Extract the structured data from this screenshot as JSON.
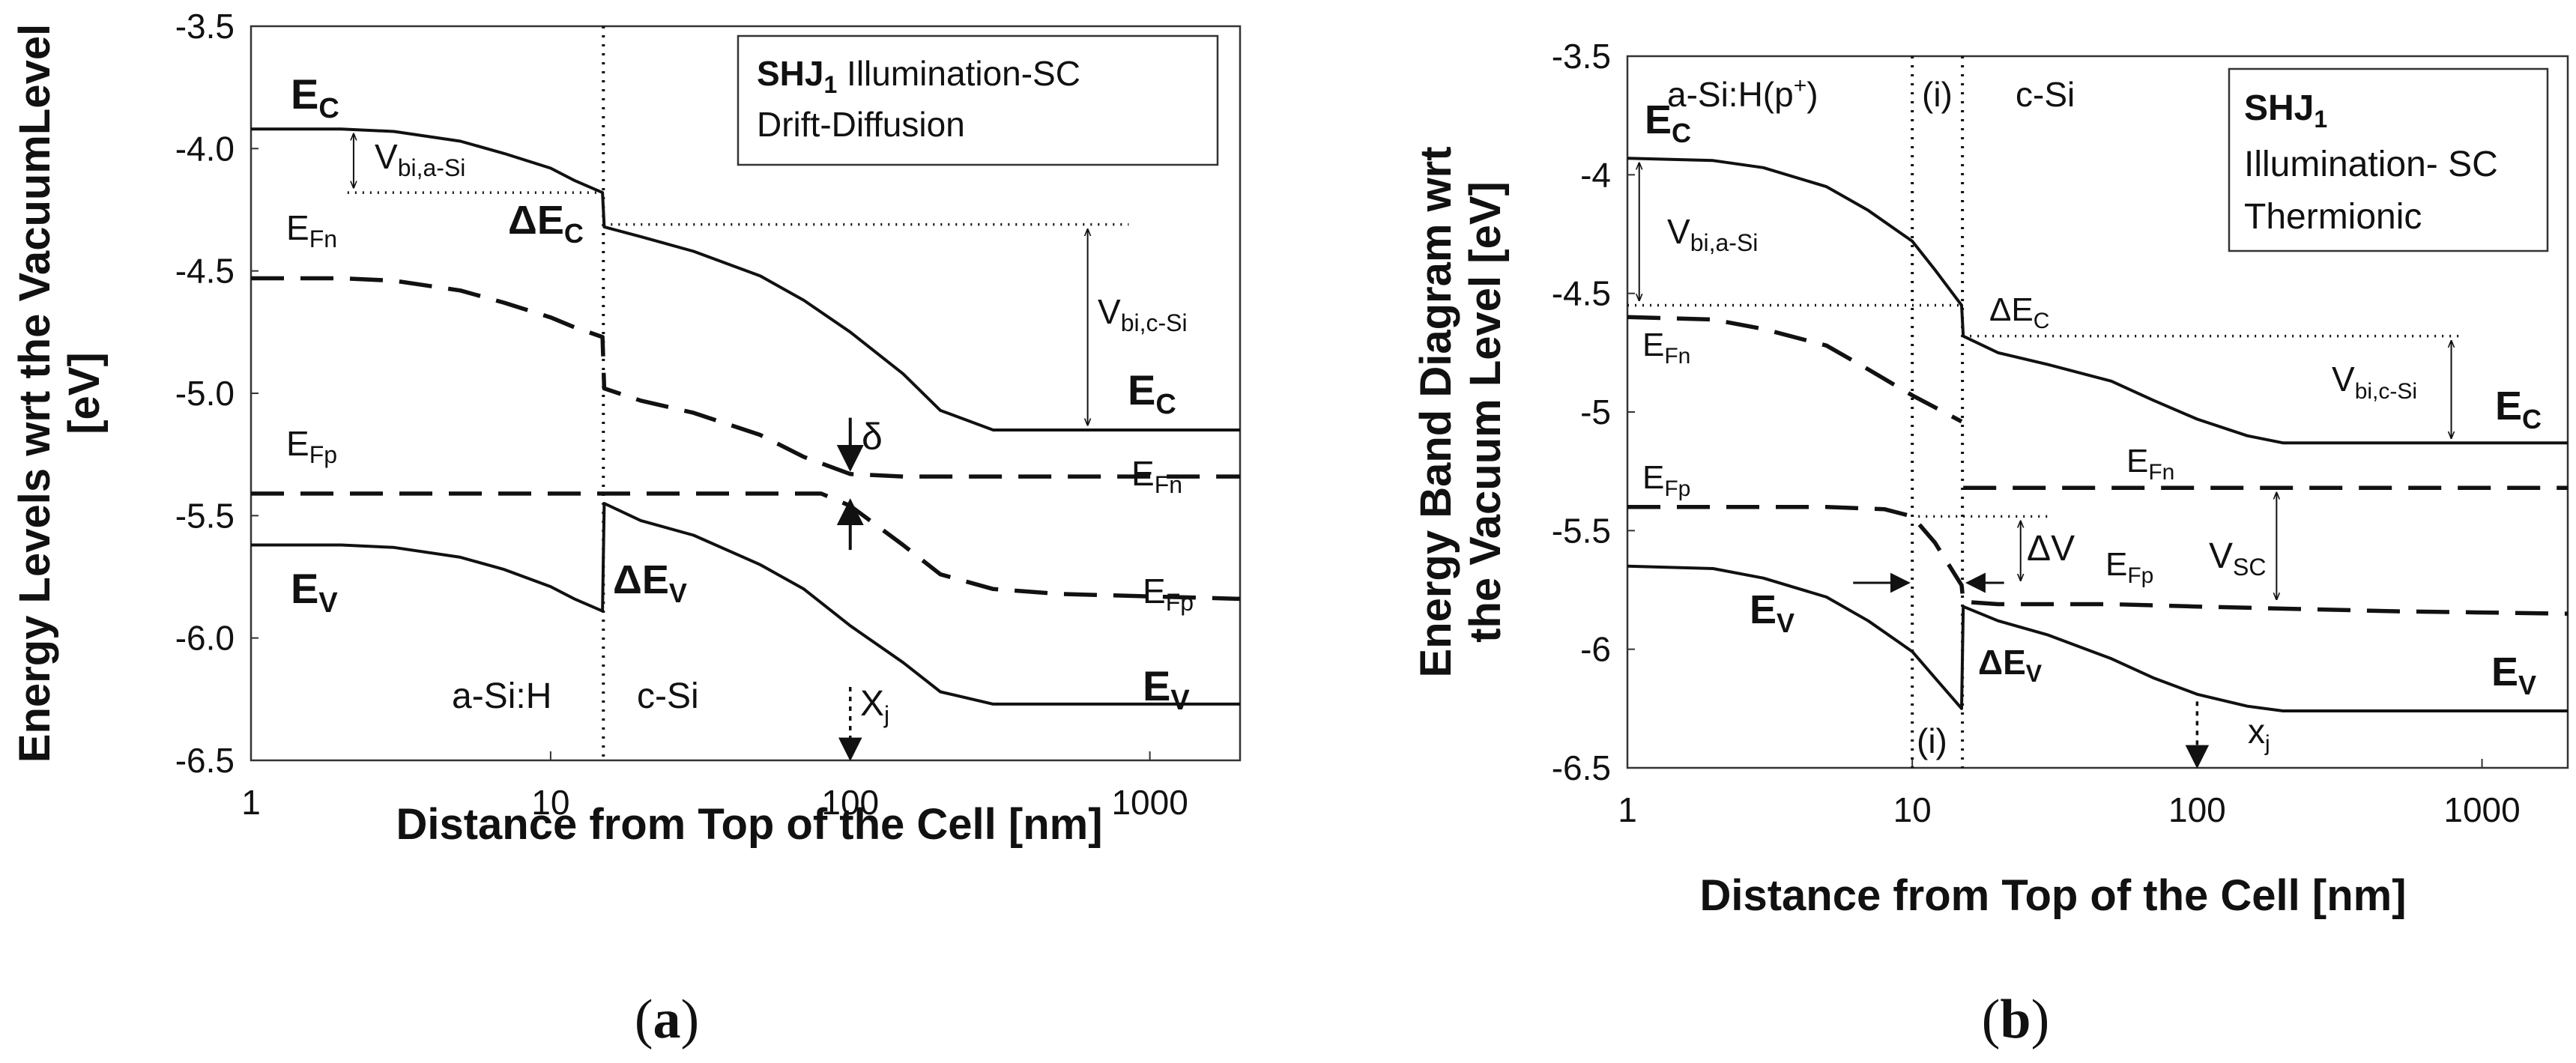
{
  "chart_data": [
    {
      "panel": "(a)",
      "type": "line",
      "xscale": "log",
      "xlim": [
        1,
        2000
      ],
      "ylim": [
        -6.5,
        -3.5
      ],
      "xticks": [
        "1",
        "10",
        "100",
        "1000"
      ],
      "yticks": [
        "-3.5",
        "-4.0",
        "-4.5",
        "-5.0",
        "-5.5",
        "-6.0",
        "-6.5"
      ],
      "xlabel": "Distance from Top of the Cell [nm]",
      "ylabel_line1": "Energy Levels wrt the VacuumLevel",
      "ylabel_line2": "[eV]",
      "legend_box": {
        "title_bold": "SHJ",
        "title_sub": "1",
        "title_rest": " Illumination-SC",
        "line2": "Drift-Diffusion"
      },
      "interface_nm": 15,
      "series": [
        {
          "name": "EC",
          "style": "solid",
          "x": [
            1,
            2,
            3,
            5,
            7,
            10,
            12,
            14.9,
            15.1,
            20,
            30,
            50,
            70,
            100,
            150,
            200,
            300,
            500,
            1000,
            2000
          ],
          "y": [
            -3.92,
            -3.92,
            -3.93,
            -3.97,
            -4.02,
            -4.08,
            -4.13,
            -4.18,
            -4.32,
            -4.36,
            -4.42,
            -4.52,
            -4.62,
            -4.75,
            -4.92,
            -5.07,
            -5.15,
            -5.15,
            -5.15,
            -5.15
          ]
        },
        {
          "name": "EFn",
          "style": "dashed",
          "x": [
            1,
            2,
            3,
            5,
            7,
            10,
            12,
            14.9,
            15.1,
            20,
            30,
            50,
            70,
            100,
            150,
            200,
            300,
            500,
            1000,
            2000
          ],
          "y": [
            -4.53,
            -4.53,
            -4.54,
            -4.58,
            -4.63,
            -4.69,
            -4.73,
            -4.77,
            -4.98,
            -5.03,
            -5.08,
            -5.17,
            -5.26,
            -5.33,
            -5.34,
            -5.34,
            -5.34,
            -5.34,
            -5.34,
            -5.34
          ]
        },
        {
          "name": "EFp",
          "style": "dashed",
          "x": [
            1,
            2,
            5,
            10,
            14.9,
            20,
            50,
            80,
            100,
            150,
            200,
            300,
            500,
            1000,
            2000
          ],
          "y": [
            -5.41,
            -5.41,
            -5.41,
            -5.41,
            -5.41,
            -5.41,
            -5.41,
            -5.41,
            -5.46,
            -5.62,
            -5.74,
            -5.8,
            -5.82,
            -5.83,
            -5.84
          ]
        },
        {
          "name": "EV",
          "style": "solid",
          "x": [
            1,
            2,
            3,
            5,
            7,
            10,
            12,
            14.9,
            15.1,
            20,
            30,
            50,
            70,
            100,
            150,
            200,
            300,
            500,
            1000,
            2000
          ],
          "y": [
            -5.62,
            -5.62,
            -5.63,
            -5.67,
            -5.72,
            -5.79,
            -5.84,
            -5.89,
            -5.45,
            -5.52,
            -5.58,
            -5.7,
            -5.8,
            -5.95,
            -6.1,
            -6.22,
            -6.27,
            -6.27,
            -6.27,
            -6.27
          ]
        }
      ],
      "labels": {
        "ec_left": "E",
        "ec_left_sub": "C",
        "efn_left": "E",
        "efn_left_sub": "Fn",
        "efp_left": "E",
        "efp_left_sub": "Fp",
        "ev_left": "E",
        "ev_left_sub": "V",
        "vbi_asi": "V",
        "vbi_asi_sub": "bi,a-Si",
        "delta_ec": "ΔE",
        "delta_ec_sub": "C",
        "vbi_csi": "V",
        "vbi_csi_sub": "bi,c-Si",
        "ec_right": "E",
        "ec_right_sub": "C",
        "delta": "δ",
        "efn_right": "E",
        "efn_right_sub": "Fn",
        "efp_right": "E",
        "efp_right_sub": "Fp",
        "delta_ev": "ΔE",
        "delta_ev_sub": "V",
        "ev_right": "E",
        "ev_right_sub": "V",
        "region_asi": "a-Si:H",
        "region_csi": "c-Si",
        "xj": "X",
        "xj_sub": "j"
      }
    },
    {
      "panel": "(b)",
      "type": "line",
      "xscale": "log",
      "xlim": [
        1,
        2000
      ],
      "ylim": [
        -6.5,
        -3.5
      ],
      "xticks": [
        "1",
        "10",
        "100",
        "1000"
      ],
      "yticks": [
        "-3.5",
        "-4",
        "-4.5",
        "-5",
        "-5.5",
        "-6",
        "-6.5"
      ],
      "xlabel": "Distance from Top of the Cell [nm]",
      "ylabel_line1": "Energy Band Diagram wrt",
      "ylabel_line2": "the Vacuum Level [eV]",
      "legend_box": {
        "title_bold": "SHJ",
        "title_sub": "1",
        "line2": "Illumination- SC",
        "line3": "Thermionic"
      },
      "interface_i_nm": 10,
      "interface_csi_nm": 15,
      "series": [
        {
          "name": "EC",
          "style": "solid",
          "x": [
            1,
            2,
            3,
            5,
            7,
            10,
            12,
            14.9,
            15.1,
            20,
            30,
            50,
            70,
            100,
            150,
            200,
            300,
            500,
            1000,
            2000
          ],
          "y": [
            -3.93,
            -3.94,
            -3.97,
            -4.05,
            -4.15,
            -4.28,
            -4.4,
            -4.55,
            -4.68,
            -4.75,
            -4.8,
            -4.87,
            -4.95,
            -5.03,
            -5.1,
            -5.13,
            -5.13,
            -5.13,
            -5.13,
            -5.13
          ]
        },
        {
          "name": "EFn",
          "style": "dashed",
          "x": [
            1,
            2,
            3,
            5,
            7,
            10,
            12,
            14.9
          ],
          "y": [
            -4.6,
            -4.61,
            -4.65,
            -4.72,
            -4.82,
            -4.93,
            -4.98,
            -5.04
          ]
        },
        {
          "name": "EFn_csi",
          "style": "dashed",
          "x": [
            15.1,
            20,
            50,
            100,
            500,
            2000
          ],
          "y": [
            -5.32,
            -5.32,
            -5.32,
            -5.32,
            -5.32,
            -5.32
          ]
        },
        {
          "name": "EFp",
          "style": "dashed",
          "x": [
            1,
            2,
            5,
            8,
            10,
            12,
            14.9,
            15.1,
            20,
            50,
            100,
            500,
            2000
          ],
          "y": [
            -5.4,
            -5.4,
            -5.4,
            -5.41,
            -5.44,
            -5.55,
            -5.73,
            -5.8,
            -5.81,
            -5.81,
            -5.82,
            -5.84,
            -5.85
          ]
        },
        {
          "name": "EV",
          "style": "solid",
          "x": [
            1,
            2,
            3,
            5,
            7,
            10,
            12,
            14.9,
            15.1,
            20,
            30,
            50,
            70,
            100,
            150,
            200,
            300,
            500,
            1000,
            2000
          ],
          "y": [
            -5.65,
            -5.66,
            -5.7,
            -5.78,
            -5.88,
            -6.01,
            -6.12,
            -6.25,
            -5.82,
            -5.88,
            -5.94,
            -6.04,
            -6.12,
            -6.19,
            -6.24,
            -6.26,
            -6.26,
            -6.26,
            -6.26,
            -6.26
          ]
        }
      ],
      "labels": {
        "region_asi": "a-Si:H(p",
        "region_asi_sup": "+",
        "region_asi_end": ")",
        "region_i": "(i)",
        "region_csi": "c-Si",
        "region_i_bottom": "(i)",
        "ec_left": "E",
        "ec_left_sub": "C",
        "vbi_asi": "V",
        "vbi_asi_sub": "bi,a-Si",
        "efn_left": "E",
        "efn_left_sub": "Fn",
        "efp_left": "E",
        "efp_left_sub": "Fp",
        "ev_left": "E",
        "ev_left_sub": "V",
        "delta_ec": "ΔE",
        "delta_ec_sub": "C",
        "vbi_csi": "V",
        "vbi_csi_sub": "bi,c-Si",
        "ec_right": "E",
        "ec_right_sub": "C",
        "efn_right": "E",
        "efn_right_sub": "Fn",
        "delta_v": "ΔV",
        "vsc": "V",
        "vsc_sub": "SC",
        "efp_right": "E",
        "efp_right_sub": "Fp",
        "delta_ev": "ΔE",
        "delta_ev_sub": "V",
        "ev_right": "E",
        "ev_right_sub": "V",
        "xj": "x",
        "xj_sub": "j"
      }
    }
  ],
  "captions": {
    "a_open": "(",
    "a_letter": "a",
    "a_close": ")",
    "b_open": "(",
    "b_letter": "b",
    "b_close": ")"
  }
}
